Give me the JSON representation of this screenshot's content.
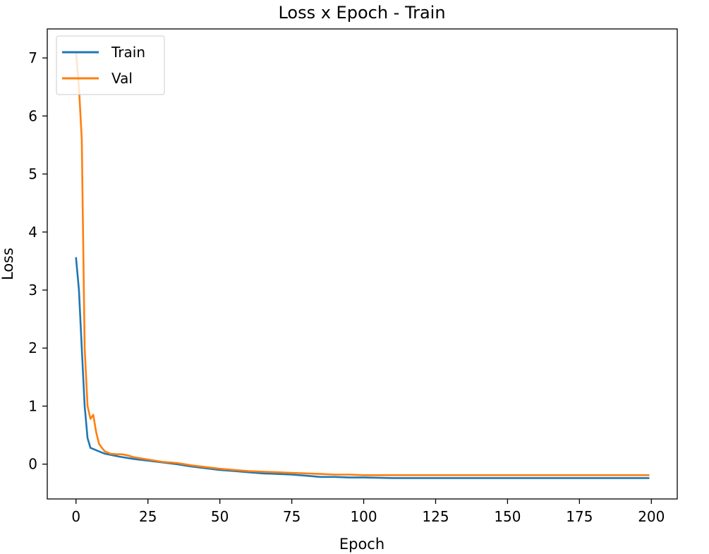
{
  "chart_data": {
    "type": "line",
    "title": "Loss x Epoch - Train",
    "xlabel": "Epoch",
    "ylabel": "Loss",
    "xlim": [
      -10,
      209
    ],
    "ylim": [
      -0.6,
      7.5
    ],
    "xticks": [
      0,
      25,
      50,
      75,
      100,
      125,
      150,
      175,
      200
    ],
    "xtick_labels": [
      "0",
      "25",
      "50",
      "75",
      "100",
      "125",
      "150",
      "175",
      "200"
    ],
    "yticks": [
      0,
      1,
      2,
      3,
      4,
      5,
      6,
      7
    ],
    "ytick_labels": [
      "0",
      "1",
      "2",
      "3",
      "4",
      "5",
      "6",
      "7"
    ],
    "grid": false,
    "legend_position": "top-left",
    "series": [
      {
        "name": "Train",
        "color": "#1f77b4",
        "x": [
          0,
          1,
          2,
          3,
          4,
          5,
          7,
          10,
          15,
          20,
          25,
          30,
          35,
          40,
          45,
          50,
          55,
          60,
          65,
          70,
          75,
          80,
          85,
          90,
          95,
          100,
          110,
          120,
          130,
          140,
          150,
          160,
          170,
          180,
          190,
          199
        ],
        "y": [
          3.55,
          3.0,
          2.0,
          1.0,
          0.45,
          0.28,
          0.24,
          0.18,
          0.13,
          0.09,
          0.06,
          0.03,
          0.0,
          -0.04,
          -0.07,
          -0.1,
          -0.12,
          -0.14,
          -0.16,
          -0.17,
          -0.18,
          -0.2,
          -0.22,
          -0.22,
          -0.23,
          -0.23,
          -0.24,
          -0.24,
          -0.24,
          -0.24,
          -0.24,
          -0.24,
          -0.24,
          -0.24,
          -0.24,
          -0.24
        ]
      },
      {
        "name": "Val",
        "color": "#ff7f0e",
        "x": [
          0,
          1,
          2,
          3,
          4,
          5,
          6,
          7,
          8,
          9,
          10,
          12,
          14,
          16,
          18,
          20,
          25,
          30,
          35,
          40,
          45,
          50,
          55,
          60,
          65,
          70,
          75,
          80,
          85,
          90,
          95,
          100,
          110,
          120,
          130,
          140,
          150,
          160,
          170,
          180,
          190,
          199
        ],
        "y": [
          7.1,
          6.5,
          5.6,
          2.0,
          1.0,
          0.78,
          0.85,
          0.55,
          0.35,
          0.28,
          0.22,
          0.18,
          0.17,
          0.17,
          0.15,
          0.12,
          0.08,
          0.04,
          0.02,
          -0.02,
          -0.05,
          -0.08,
          -0.1,
          -0.12,
          -0.13,
          -0.14,
          -0.15,
          -0.16,
          -0.17,
          -0.18,
          -0.18,
          -0.19,
          -0.19,
          -0.19,
          -0.19,
          -0.19,
          -0.19,
          -0.19,
          -0.19,
          -0.19,
          -0.19,
          -0.19
        ]
      }
    ]
  }
}
